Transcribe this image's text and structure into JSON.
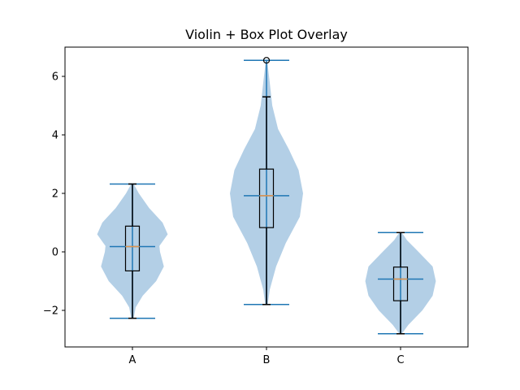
{
  "chart_data": {
    "type": "violin",
    "title": "Violin + Box Plot Overlay",
    "xlabel": "",
    "ylabel": "",
    "categories": [
      "A",
      "B",
      "C"
    ],
    "ylim": [
      -3.25,
      7.0
    ],
    "yticks": [
      -2,
      0,
      2,
      4,
      6
    ],
    "ytick_labels": [
      "−2",
      "0",
      "2",
      "4",
      "6"
    ],
    "grid": false,
    "series": [
      {
        "category": "A",
        "min": -2.27,
        "max": 2.32,
        "median": 0.18,
        "q1": -0.65,
        "q3": 0.88,
        "whisker_low": -2.27,
        "whisker_high": 2.32,
        "outliers": [],
        "density": [
          [
            -2.27,
            0.02
          ],
          [
            -1.9,
            0.05
          ],
          [
            -1.5,
            0.16
          ],
          [
            -1.0,
            0.37
          ],
          [
            -0.5,
            0.49
          ],
          [
            0.0,
            0.43
          ],
          [
            0.2,
            0.42
          ],
          [
            0.6,
            0.55
          ],
          [
            1.0,
            0.47
          ],
          [
            1.5,
            0.26
          ],
          [
            2.0,
            0.1
          ],
          [
            2.32,
            0.02
          ]
        ]
      },
      {
        "category": "B",
        "min": -1.8,
        "max": 6.55,
        "median": 1.92,
        "q1": 0.83,
        "q3": 2.83,
        "whisker_low": -1.8,
        "whisker_high": 5.3,
        "outliers": [
          6.55
        ],
        "density": [
          [
            -1.8,
            0.02
          ],
          [
            -1.3,
            0.05
          ],
          [
            -0.5,
            0.15
          ],
          [
            0.3,
            0.3
          ],
          [
            1.2,
            0.52
          ],
          [
            2.0,
            0.57
          ],
          [
            2.8,
            0.5
          ],
          [
            3.5,
            0.35
          ],
          [
            4.2,
            0.18
          ],
          [
            5.0,
            0.09
          ],
          [
            5.8,
            0.05
          ],
          [
            6.55,
            0.01
          ]
        ]
      },
      {
        "category": "C",
        "min": -2.8,
        "max": 0.66,
        "median": -0.93,
        "q1": -1.67,
        "q3": -0.52,
        "whisker_low": -2.8,
        "whisker_high": 0.66,
        "outliers": [],
        "density": [
          [
            -2.8,
            0.02
          ],
          [
            -2.5,
            0.12
          ],
          [
            -2.0,
            0.34
          ],
          [
            -1.5,
            0.5
          ],
          [
            -1.0,
            0.55
          ],
          [
            -0.5,
            0.5
          ],
          [
            0.0,
            0.28
          ],
          [
            0.4,
            0.1
          ],
          [
            0.66,
            0.02
          ]
        ]
      }
    ],
    "colors": {
      "violin_fill": "#b3cfe6",
      "lines": "#1f77b4",
      "box": "#000000",
      "median": "#e8964a"
    }
  }
}
